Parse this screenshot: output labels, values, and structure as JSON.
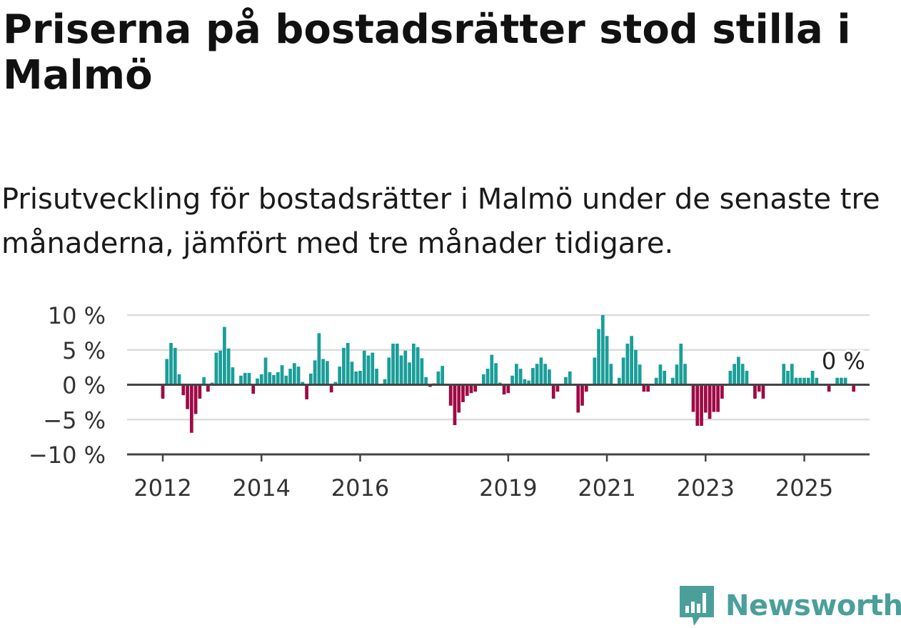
{
  "header": {
    "title": "Priserna på bostadsrätter stod stilla i Malmö",
    "subtitle": "Prisutveckling för bostadsrätter i Malmö under de senaste tre månaderna, jämfört med tre månader tidigare."
  },
  "brand": {
    "name": "Newsworthy",
    "icon": "newsworthy-logo-icon",
    "color": "#4a9f9b"
  },
  "chart_data": {
    "type": "bar",
    "title": "",
    "xlabel": "",
    "ylabel": "",
    "ylim": [
      -10,
      10
    ],
    "yticks": [
      10,
      5,
      0,
      -5,
      -10
    ],
    "ytick_labels": [
      "10 %",
      "5 %",
      "0 %",
      "−5 %",
      "−10 %"
    ],
    "grid": true,
    "colors": {
      "positive": "#1a9e99",
      "negative": "#9e0a45"
    },
    "x_start": "2012-01",
    "x_frequency": "monthly",
    "xtick_labels": [
      {
        "label": "2012",
        "month": "2012-01"
      },
      {
        "label": "2014",
        "month": "2014-01"
      },
      {
        "label": "2016",
        "month": "2016-01"
      },
      {
        "label": "2019",
        "month": "2019-01"
      },
      {
        "label": "2021",
        "month": "2021-01"
      },
      {
        "label": "2023",
        "month": "2023-01"
      },
      {
        "label": "2025",
        "month": "2025-01"
      }
    ],
    "annotation": {
      "text": "0 %",
      "month": "2025-06"
    },
    "values": [
      -2,
      3.7,
      6,
      5.3,
      1.5,
      -1.5,
      -3.5,
      -6.9,
      -4.2,
      -2,
      1.1,
      -1,
      0.3,
      4.6,
      4.9,
      8.3,
      5.2,
      2.5,
      0,
      1.3,
      1.7,
      1.7,
      -1.3,
      0.9,
      1.5,
      3.9,
      1.8,
      1.4,
      1.8,
      2.8,
      1.3,
      2.3,
      3.1,
      2.6,
      0.4,
      -2.1,
      1.6,
      3.5,
      7.4,
      3.7,
      3.4,
      -1.1,
      0.4,
      2.6,
      5.3,
      6,
      3.3,
      1.9,
      2,
      4.9,
      4.2,
      4.6,
      2.3,
      0,
      0.8,
      3.9,
      5.9,
      5.9,
      4.2,
      4.9,
      3.2,
      5.9,
      5.4,
      3.8,
      1.1,
      -0.3,
      0.2,
      1.9,
      2.7,
      0,
      -3,
      -5.8,
      -4,
      -2.5,
      -1.6,
      -1.2,
      -1,
      0,
      1.5,
      2.3,
      4.3,
      3.1,
      0.3,
      -1.4,
      -1.2,
      1.3,
      3,
      2.3,
      0.8,
      0.6,
      2.4,
      3,
      3.9,
      3,
      2.2,
      -2,
      -1,
      0.1,
      1.1,
      1.9,
      0,
      -4,
      -3,
      -1,
      0,
      3.9,
      8,
      10,
      7,
      3,
      0,
      1,
      3.9,
      5.9,
      7,
      5,
      2.9,
      -1,
      -1,
      0,
      1,
      2.9,
      2,
      0,
      1,
      2.9,
      5.9,
      3,
      0,
      -3.9,
      -5.9,
      -5.9,
      -4,
      -4.9,
      -3.9,
      -3.9,
      -2,
      0,
      2,
      3,
      4,
      3,
      2,
      0,
      -2,
      -1,
      -2,
      0,
      0,
      0,
      0,
      3,
      2,
      3,
      1,
      1,
      1,
      1,
      2,
      1,
      0,
      0,
      -1,
      0,
      1,
      1,
      1,
      0,
      -1,
      0
    ]
  }
}
